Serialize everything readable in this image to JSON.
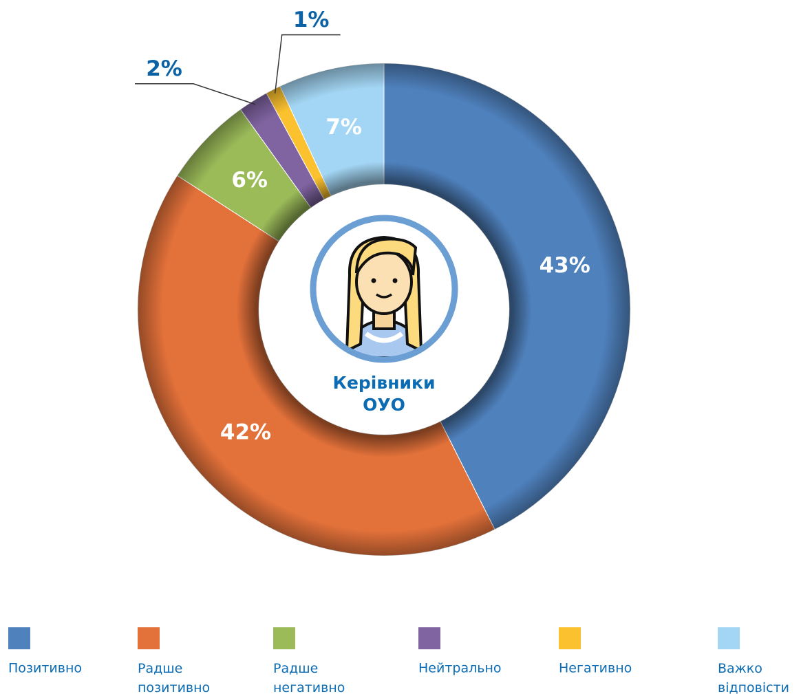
{
  "chart_data": {
    "type": "donut",
    "center_label": [
      "Керівники",
      "ОУО"
    ],
    "categories": [
      "Позитивно",
      "Радше позитивно",
      "Радше негативно",
      "Нейтрально",
      "Негативно",
      "Важко відповісти"
    ],
    "values": [
      43,
      42,
      6,
      2,
      1,
      7
    ],
    "value_labels": [
      "43%",
      "42%",
      "6%",
      "2%",
      "1%",
      "7%"
    ],
    "colors": [
      "#4f81bd",
      "#e3713a",
      "#9bbb59",
      "#8064a2",
      "#fbc12e",
      "#a3d6f4"
    ],
    "legend": "bottom"
  }
}
